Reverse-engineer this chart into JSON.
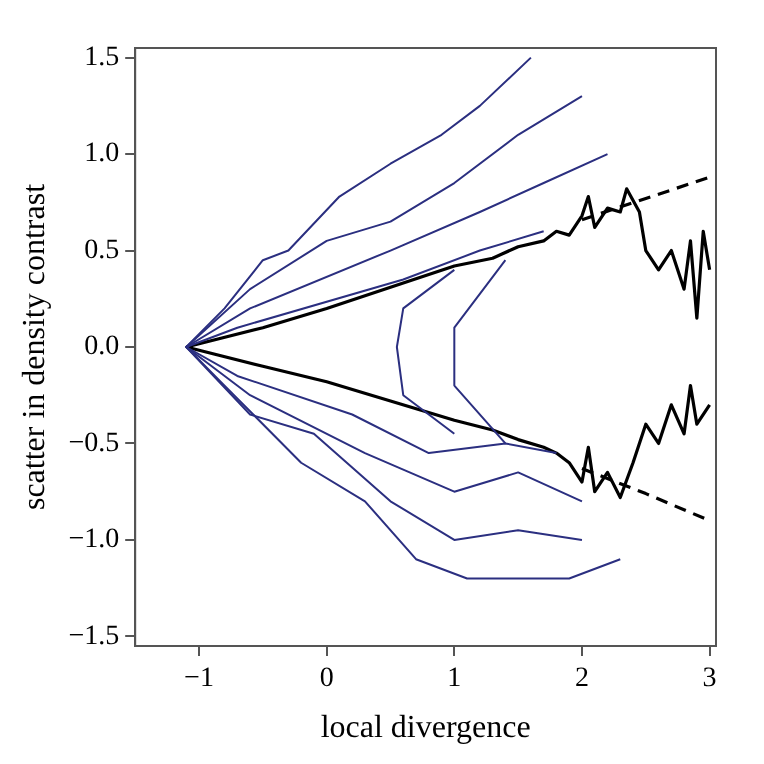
{
  "chart_data": {
    "type": "line",
    "xlabel": "local divergence",
    "ylabel": "scatter in density contrast",
    "xlim": [
      -1.5,
      3.05
    ],
    "ylim": [
      -1.55,
      1.55
    ],
    "xticks": [
      {
        "value": -1,
        "label": "−1"
      },
      0,
      1,
      2,
      3
    ],
    "yticks": [
      {
        "value": -1.5,
        "label": "−1.5"
      },
      {
        "value": -1,
        "label": "−1.0"
      },
      {
        "value": -0.5,
        "label": "−0.5"
      },
      {
        "value": 0,
        "label": "0.0"
      },
      0.5,
      {
        "value": 1,
        "label": "1.0"
      },
      1.5
    ],
    "grid": false,
    "legend": false,
    "marker": "none",
    "line_style": "solid",
    "series": [
      {
        "type": "line",
        "color": "#2b2f80",
        "x": [
          1.6,
          1.2,
          0.9,
          0.5,
          0.1,
          -0.3,
          -0.5,
          -0.8,
          -1.1,
          -0.8,
          -0.2,
          0.3,
          0.7,
          1.1,
          1.5,
          1.9,
          2.3
        ],
        "values": [
          1.5,
          1.25,
          1.1,
          0.95,
          0.78,
          0.5,
          0.45,
          0.2,
          0,
          -0.2,
          -0.6,
          -0.8,
          -1.1,
          -1.2,
          -1.2,
          -1.2,
          -1.1
        ]
      },
      {
        "type": "line",
        "color": "#2b2f80",
        "x": [
          2.0,
          1.5,
          1.0,
          0.5,
          0.0,
          -0.6,
          -1.1,
          -0.6,
          -0.1,
          0.5,
          1.0,
          1.5,
          2.0
        ],
        "values": [
          1.3,
          1.1,
          0.85,
          0.65,
          0.55,
          0.3,
          0,
          -0.35,
          -0.45,
          -0.8,
          -1.0,
          -0.95,
          -1.0
        ]
      },
      {
        "type": "line",
        "color": "#2b2f80",
        "x": [
          2.2,
          1.7,
          1.2,
          0.5,
          -0.6,
          -1.1,
          -0.6,
          0.3,
          1.0,
          1.5,
          2.0
        ],
        "values": [
          1.0,
          0.85,
          0.7,
          0.5,
          0.2,
          0,
          -0.25,
          -0.55,
          -0.75,
          -0.65,
          -0.8
        ]
      },
      {
        "type": "line",
        "color": "#2b2f80",
        "x": [
          1.7,
          1.2,
          0.6,
          -0.7,
          -1.1,
          -0.7,
          0.2,
          0.8,
          1.4,
          1.8
        ],
        "values": [
          0.6,
          0.5,
          0.35,
          0.1,
          0,
          -0.15,
          -0.35,
          -0.55,
          -0.5,
          -0.55
        ]
      },
      {
        "type": "line",
        "color": "#2b2f80",
        "x": [
          1.0,
          0.6,
          0.55,
          0.6,
          1.0
        ],
        "values": [
          0.4,
          0.2,
          0,
          -0.25,
          -0.45
        ]
      },
      {
        "type": "line",
        "color": "#2b2f80",
        "x": [
          1.4,
          1.0,
          1.0,
          1.4
        ],
        "values": [
          0.45,
          0.1,
          -0.2,
          -0.5
        ]
      },
      {
        "type": "line",
        "color": "#000000",
        "x": [
          -1.1,
          -0.5,
          0,
          0.5,
          1,
          1.3,
          1.5,
          1.7,
          1.8,
          1.9,
          2.0,
          2.05,
          2.1,
          2.2,
          2.3,
          2.35,
          2.45,
          2.5,
          2.6,
          2.7,
          2.8,
          2.85,
          2.9,
          2.95,
          3.0
        ],
        "values": [
          0,
          0.1,
          0.2,
          0.31,
          0.42,
          0.46,
          0.52,
          0.55,
          0.6,
          0.58,
          0.68,
          0.78,
          0.62,
          0.72,
          0.7,
          0.82,
          0.7,
          0.5,
          0.4,
          0.5,
          0.3,
          0.55,
          0.15,
          0.6,
          0.4
        ]
      },
      {
        "type": "line",
        "color": "#000000",
        "x": [
          -1.1,
          -0.5,
          0,
          0.5,
          1,
          1.3,
          1.5,
          1.7,
          1.8,
          1.9,
          2.0,
          2.05,
          2.1,
          2.2,
          2.3,
          2.4,
          2.5,
          2.6,
          2.7,
          2.8,
          2.85,
          2.9,
          3.0
        ],
        "values": [
          0,
          -0.1,
          -0.18,
          -0.28,
          -0.38,
          -0.43,
          -0.48,
          -0.52,
          -0.55,
          -0.6,
          -0.7,
          -0.52,
          -0.75,
          -0.65,
          -0.78,
          -0.6,
          -0.4,
          -0.5,
          -0.3,
          -0.45,
          -0.2,
          -0.4,
          -0.3
        ]
      },
      {
        "type": "line",
        "color": "#000000",
        "line_style": "dashed",
        "x": [
          2.0,
          2.5,
          3.0
        ],
        "values": [
          0.66,
          0.77,
          0.88
        ]
      },
      {
        "type": "line",
        "color": "#000000",
        "line_style": "dashed",
        "x": [
          2.0,
          2.5,
          3.0
        ],
        "values": [
          -0.63,
          -0.76,
          -0.9
        ]
      }
    ]
  }
}
